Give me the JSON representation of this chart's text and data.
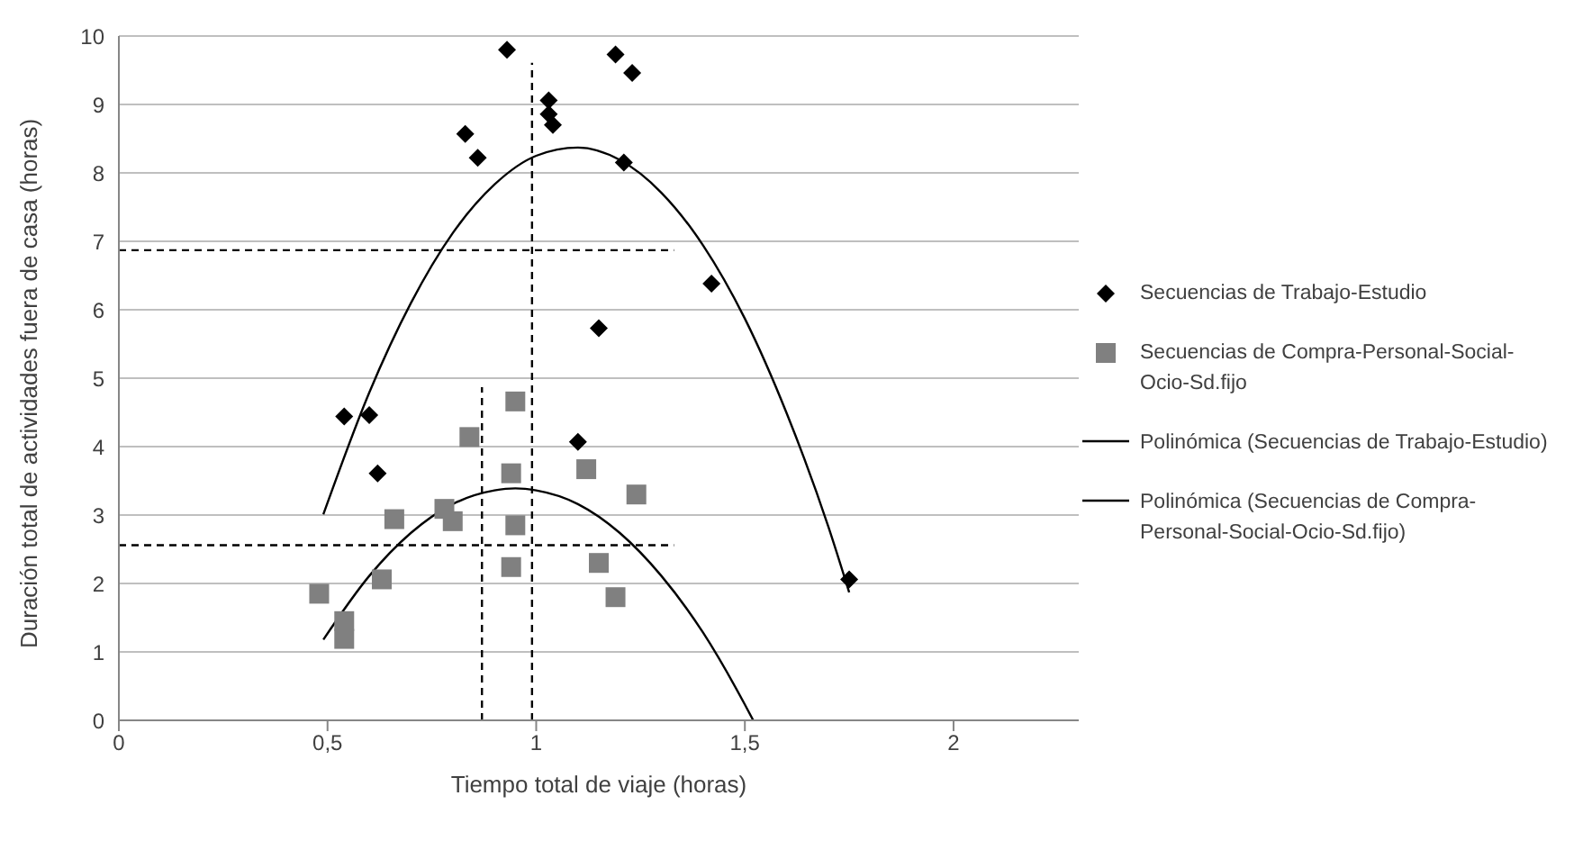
{
  "chart_data": {
    "type": "scatter",
    "xlabel": "Tiempo total de viaje (horas)",
    "ylabel": "Duración total de actividades fuera de casa (horas)",
    "xlim": [
      0,
      2.3
    ],
    "ylim": [
      0,
      10
    ],
    "xticks": [
      0,
      {
        "value": 0.5,
        "label": "0,5"
      },
      1,
      {
        "value": 1.5,
        "label": "1,5"
      },
      2
    ],
    "yticks": [
      0,
      1,
      2,
      3,
      4,
      5,
      6,
      7,
      8,
      9,
      10
    ],
    "grid": "y",
    "legend": "right",
    "series": [
      {
        "name": "Secuencias de Trabajo-Estudio",
        "type": "scatter",
        "marker": "diamond",
        "color": "#000000",
        "x": [
          0.93,
          1.19,
          1.23,
          1.03,
          1.03,
          1.04,
          0.83,
          0.86,
          1.21,
          1.42,
          1.15,
          0.54,
          0.6,
          0.62,
          1.1,
          1.75
        ],
        "values": [
          9.8,
          9.73,
          9.46,
          9.06,
          8.86,
          8.7,
          8.57,
          8.22,
          8.15,
          6.38,
          5.73,
          4.44,
          4.46,
          3.61,
          4.07,
          2.06
        ]
      },
      {
        "name": "Secuencias de Compra-Personal-Social-Ocio-Sd.fijo",
        "type": "scatter",
        "marker": "square",
        "color": "#808080",
        "x": [
          0.95,
          0.84,
          0.94,
          1.12,
          1.24,
          0.66,
          0.78,
          0.8,
          0.95,
          0.94,
          1.15,
          1.19,
          0.63,
          0.48,
          0.54,
          0.54
        ],
        "values": [
          4.66,
          4.14,
          3.61,
          3.67,
          3.3,
          2.94,
          3.09,
          2.91,
          2.85,
          2.24,
          2.3,
          1.8,
          2.06,
          1.85,
          1.45,
          1.19
        ]
      },
      {
        "name": "Polinómica (Secuencias de Trabajo-Estudio)",
        "type": "line",
        "marker": "none",
        "line_style": "solid",
        "color": "#000000",
        "x": [
          0.49,
          0.6,
          0.7,
          0.8,
          0.9,
          1.0,
          1.1,
          1.2,
          1.3,
          1.4,
          1.5,
          1.6,
          1.7,
          1.75
        ],
        "values": [
          3.01,
          4.79,
          6.1,
          7.12,
          7.83,
          8.25,
          8.37,
          8.19,
          7.71,
          6.94,
          5.87,
          4.49,
          2.83,
          1.87
        ]
      },
      {
        "name": "Polinómica (Secuencias de Compra-Personal-Social-Ocio-Sd.fijo)",
        "type": "line",
        "marker": "none",
        "line_style": "solid",
        "color": "#000000",
        "x": [
          0.49,
          0.6,
          0.7,
          0.8,
          0.9,
          0.95,
          1.0,
          1.1,
          1.2,
          1.3,
          1.4,
          1.5,
          1.52
        ],
        "values": [
          1.18,
          2.11,
          2.74,
          3.16,
          3.36,
          3.39,
          3.36,
          3.16,
          2.74,
          2.11,
          1.28,
          0.23,
          0
        ]
      },
      {
        "type": "line",
        "marker": "none",
        "line_style": "dashed",
        "color": "#000000",
        "x": [
          0.99,
          0.99
        ],
        "values": [
          0,
          9.61
        ]
      },
      {
        "type": "line",
        "marker": "none",
        "line_style": "dashed",
        "color": "#000000",
        "x": [
          0,
          1.33
        ],
        "values": [
          6.87,
          6.87
        ]
      },
      {
        "type": "line",
        "marker": "none",
        "line_style": "dashed",
        "color": "#000000",
        "x": [
          0.87,
          0.87
        ],
        "values": [
          0,
          4.87
        ]
      },
      {
        "type": "line",
        "marker": "none",
        "line_style": "dashed",
        "color": "#000000",
        "x": [
          0,
          1.33
        ],
        "values": [
          2.56,
          2.56
        ]
      }
    ]
  }
}
